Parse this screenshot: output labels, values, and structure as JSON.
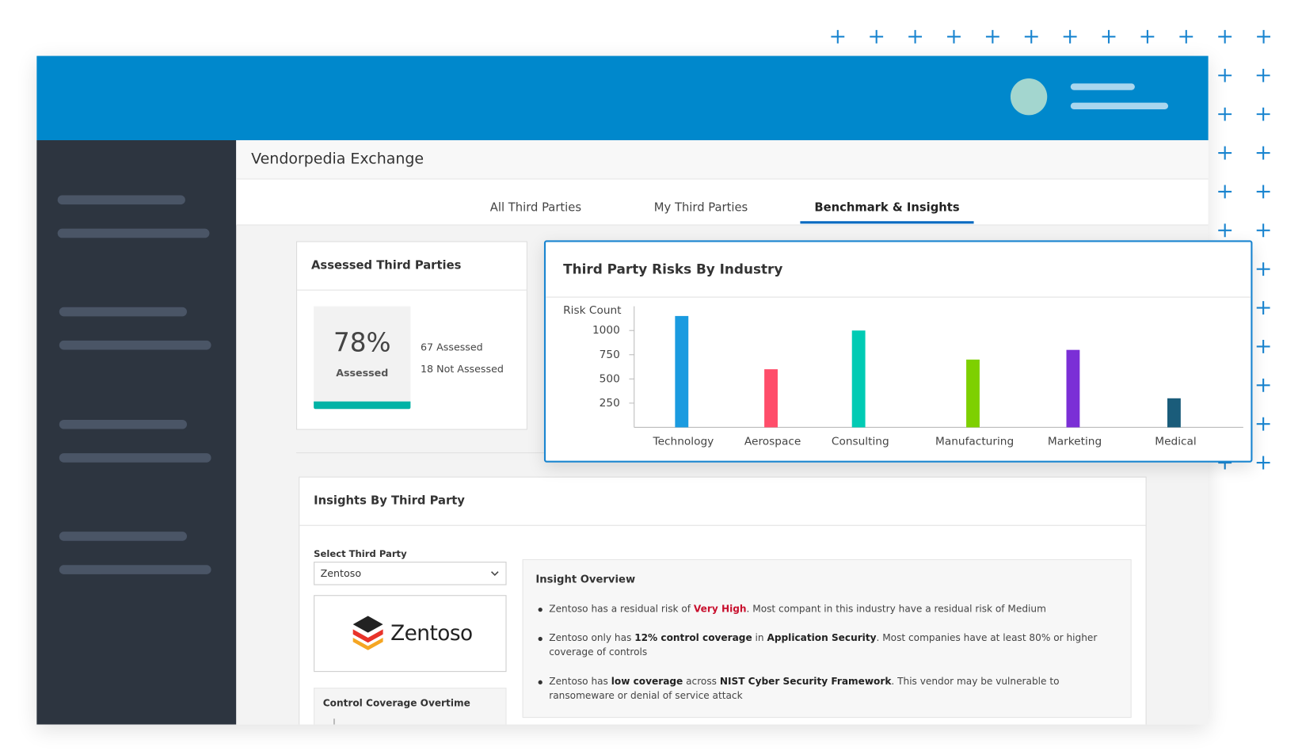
{
  "header": {
    "title": "Vendorpedia Exchange"
  },
  "tabs": [
    "All Third Parties",
    "My Third Parties",
    "Benchmark & Insights"
  ],
  "assessed": {
    "title": "Assessed Third Parties",
    "percent": "78%",
    "percent_label": "Assessed",
    "assessed": "67 Assessed",
    "not_assessed": "18 Not Assessed"
  },
  "chart_data": {
    "type": "bar",
    "title": "Third Party Risks By Industry",
    "ylabel": "Risk Count",
    "categories": [
      "Technology",
      "Aerospace",
      "Consulting",
      "Manufacturing",
      "Marketing",
      "Medical"
    ],
    "values": [
      1150,
      600,
      1000,
      700,
      800,
      300
    ],
    "colors": [
      "#1a9be0",
      "#ff4d6a",
      "#00cbb4",
      "#7ed000",
      "#7b2fd6",
      "#1a5c7a"
    ],
    "ylim": [
      0,
      1250
    ],
    "yticks": [
      250,
      500,
      750,
      1000
    ],
    "grid": false
  },
  "insights": {
    "title": "Insights By Third Party",
    "select_label": "Select Third Party",
    "selected": "Zentoso",
    "logo_text": "Zentoso",
    "coverage_title": "Control Coverage Overtime",
    "overview_title": "Insight Overview",
    "bullets": [
      [
        {
          "text": "Zentoso has a residual risk of "
        },
        {
          "text": "Very High",
          "bold": true,
          "color": "#c8102e"
        },
        {
          "text": ". Most compant in this industry have a residual risk of Medium"
        }
      ],
      [
        {
          "text": "Zentoso only has "
        },
        {
          "text": "12% control coverage",
          "bold": true
        },
        {
          "text": " in "
        },
        {
          "text": "Application Security",
          "bold": true
        },
        {
          "text": ". Most companies have at least 80% or higher coverage of controls"
        }
      ],
      [
        {
          "text": "Zentoso has "
        },
        {
          "text": "low coverage",
          "bold": true
        },
        {
          "text": " across "
        },
        {
          "text": "NIST Cyber Security Framework",
          "bold": true
        },
        {
          "text": ". This vendor may be vulnerable to ransomeware or denial of service attack"
        }
      ]
    ]
  }
}
